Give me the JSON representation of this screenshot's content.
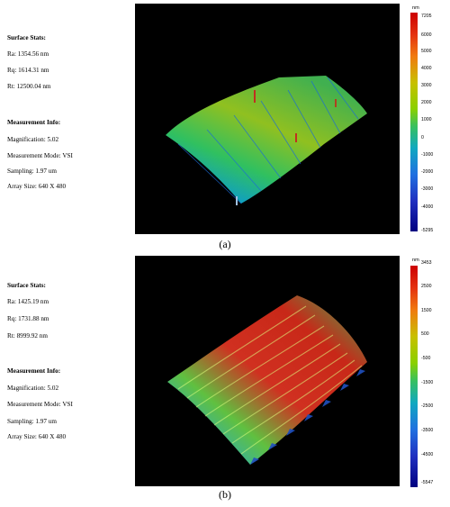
{
  "panel_a": {
    "stats_title": "Surface Stats:",
    "ra": "Ra: 1354.56 nm",
    "rq": "Rq: 1614.31 nm",
    "rt": "Rt: 12500.04 nm",
    "meas_title": "Measurement Info:",
    "magnification": "Magnification: 5.02",
    "mode": "Measurement Mode: VSI",
    "sampling": "Sampling: 1.97 um",
    "array": "Array Size: 640 X 480",
    "unit": "nm",
    "ticks": [
      "7205",
      "6000",
      "5000",
      "4000",
      "3000",
      "2000",
      "1000",
      "0",
      "-1000",
      "-2000",
      "-3000",
      "-4000",
      "-5295"
    ],
    "caption": "(a)"
  },
  "panel_b": {
    "stats_title": "Surface Stats:",
    "ra": "Ra: 1425.19 nm",
    "rq": "Rq: 1731.88 nm",
    "rt": "Rt: 8999.92 nm",
    "meas_title": "Measurement Info:",
    "magnification": "Magnification: 5.02",
    "mode": "Measurement Mode: VSI",
    "sampling": "Sampling: 1.97 um",
    "array": "Array Size: 640 X 480",
    "unit": "nm",
    "ticks": [
      "3453",
      "2500",
      "1500",
      "500",
      "-500",
      "-1500",
      "-2500",
      "-3500",
      "-4500",
      "-5547"
    ],
    "caption": "(b)"
  }
}
